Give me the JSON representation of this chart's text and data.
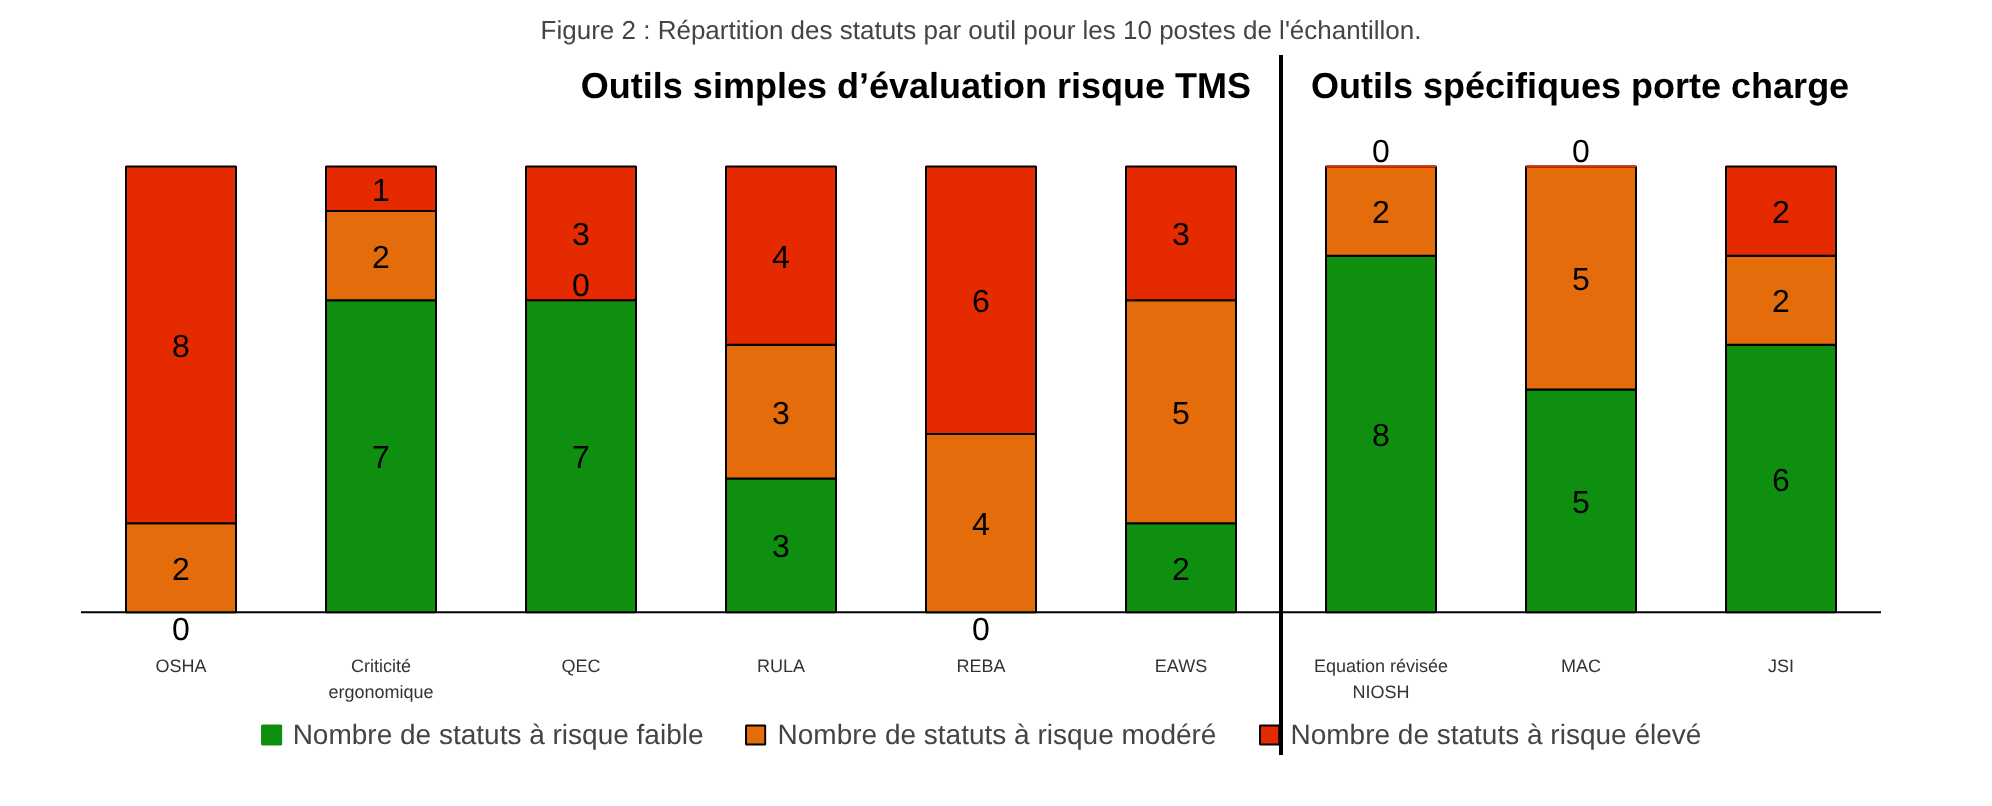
{
  "chart_data": {
    "type": "bar",
    "stacked": true,
    "title": "Figure 2 : Répartition des statuts par outil pour les 10 postes de l'échantillon.",
    "categories": [
      "OSHA",
      "Criticité ergonomique",
      "QEC",
      "RULA",
      "REBA",
      "EAWS",
      "Equation révisée NIOSH",
      "MAC",
      "JSI"
    ],
    "series": [
      {
        "name": "Nombre de statuts à risque faible",
        "color": "#0f8f0f",
        "values": [
          0,
          7,
          7,
          3,
          0,
          2,
          8,
          5,
          6
        ]
      },
      {
        "name": "Nombre de statuts à risque modéré",
        "color": "#e46c0a",
        "values": [
          2,
          2,
          0,
          3,
          4,
          5,
          2,
          5,
          2
        ]
      },
      {
        "name": "Nombre de statuts à risque élevé",
        "color": "#e52a00",
        "values": [
          8,
          1,
          3,
          4,
          6,
          3,
          0,
          0,
          2
        ]
      }
    ],
    "annotations": [
      "Outils simples d’évaluation risque TMS",
      "Outils spécifiques porte charge"
    ],
    "data_labels": true,
    "legend": "bottom",
    "tick_labels": "x",
    "grid": false
  }
}
